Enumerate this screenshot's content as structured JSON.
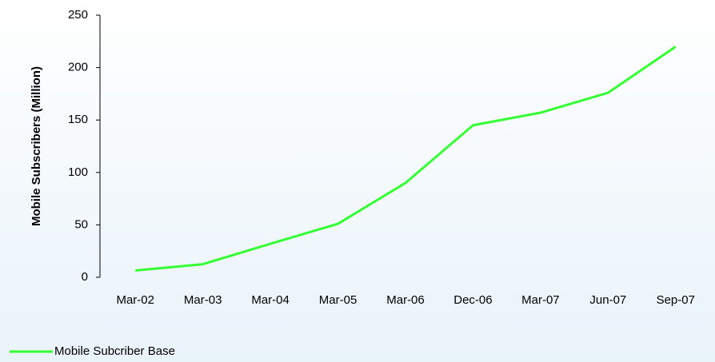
{
  "chart_data": {
    "type": "line",
    "categories": [
      "Mar-02",
      "Mar-03",
      "Mar-04",
      "Mar-05",
      "Mar-06",
      "Dec-06",
      "Mar-07",
      "Jun-07",
      "Sep-07"
    ],
    "series": [
      {
        "name": "Mobile Subcriber Base",
        "color": "#33ff33",
        "values": [
          6.5,
          12.5,
          32,
          51,
          90,
          145,
          157,
          176,
          220
        ]
      }
    ],
    "ylabel": "Mobile Subscribers (Million)",
    "ylim": [
      0,
      250
    ],
    "yticks": [
      0,
      50,
      100,
      150,
      200,
      250
    ],
    "grid": false,
    "legend": "bottom-left"
  }
}
